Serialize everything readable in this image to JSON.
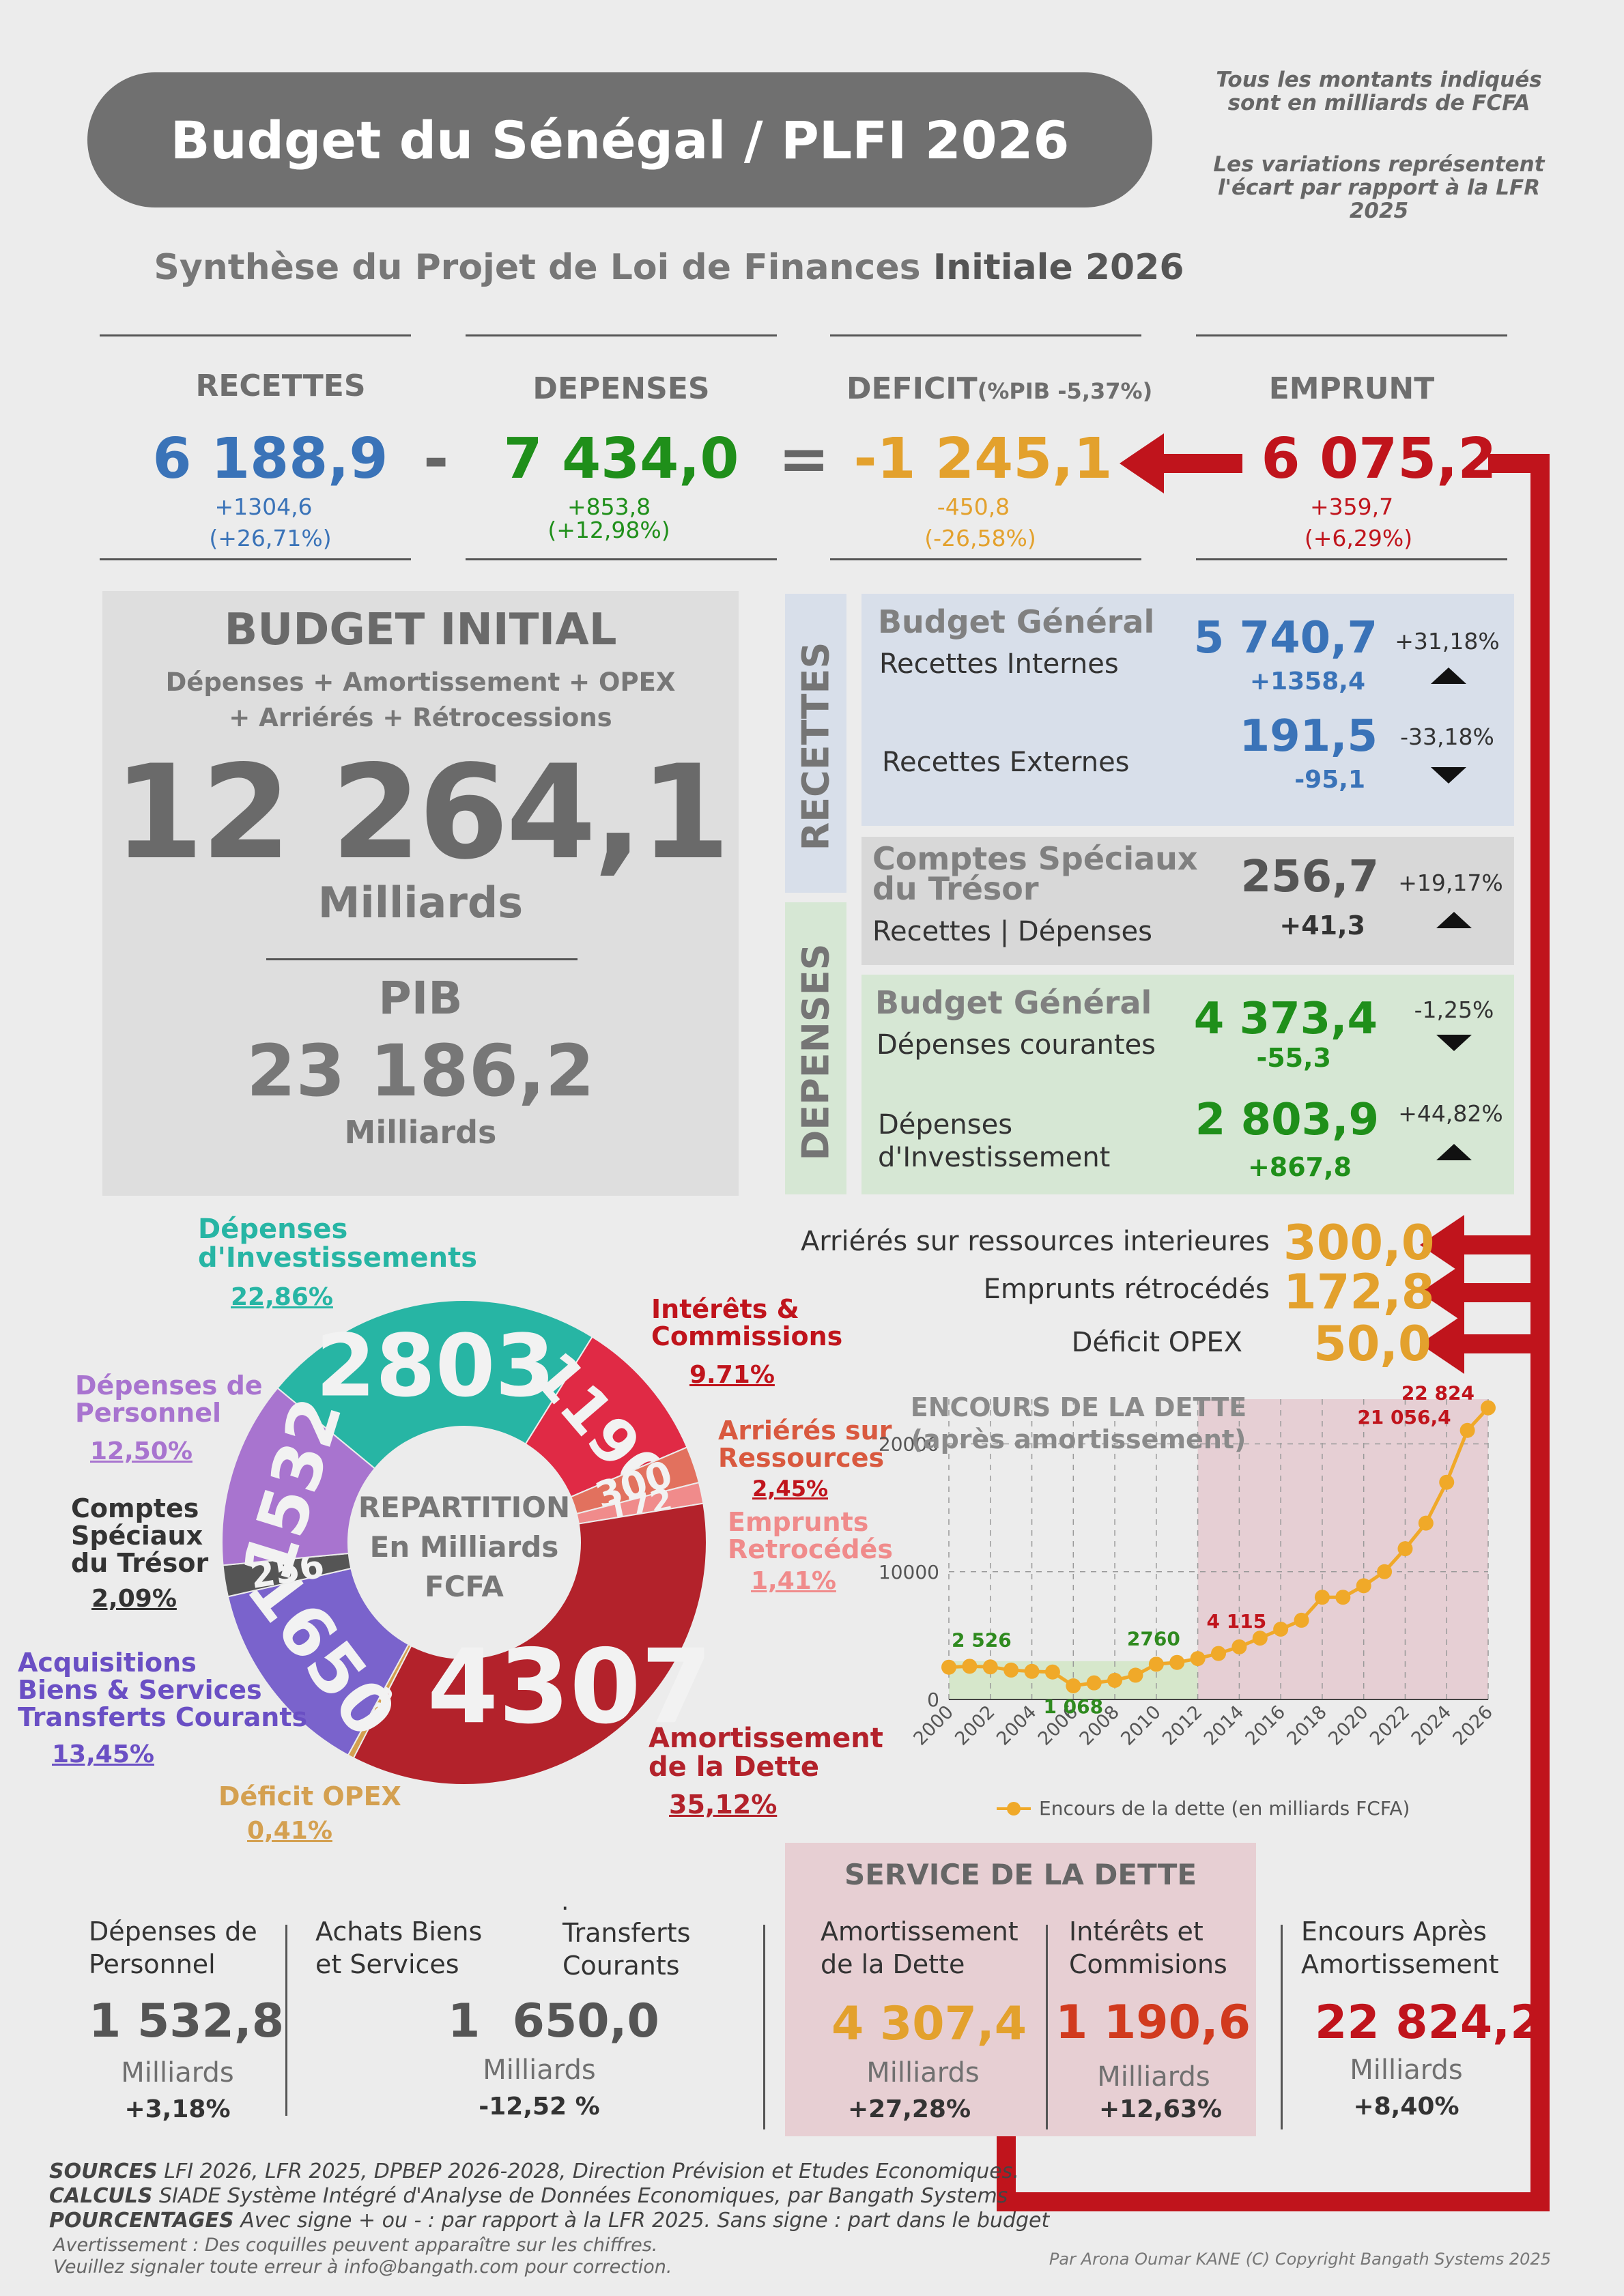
{
  "header": {
    "title": "Budget du Sénégal / PLFI 2026",
    "note1": "Tous les montants indiqués sont en milliards de FCFA",
    "note2": "Les variations représentent l'écart par rapport à la LFR 2025",
    "subtitle_a": "Synthèse du Projet de Loi de Finances",
    "subtitle_b": "Initiale 2026"
  },
  "kpis": {
    "recettes": {
      "label": "RECETTES",
      "value": "6 188,9",
      "delta": "+1304,6",
      "pct": "(+26,71%)"
    },
    "minus": "-",
    "depenses": {
      "label": "DEPENSES",
      "value": "7 434,0",
      "delta": "+853,8",
      "pct": "(+12,98%)"
    },
    "equals": "=",
    "deficit": {
      "label": "DEFICIT",
      "label2": "(%PIB -5,37%)",
      "value": "-1 245,1",
      "delta": "-450,8",
      "pct": "(-26,58%)"
    },
    "emprunt": {
      "label": "EMPRUNT",
      "value": "6 075,2",
      "delta": "+359,7",
      "pct": "(+6,29%)"
    }
  },
  "budget_initial": {
    "title": "BUDGET INITIAL",
    "desc1": "Dépenses + Amortissement + OPEX",
    "desc2": "+ Arriérés + Rétrocessions",
    "value": "12 264,1",
    "unit": "Milliards",
    "pib_label": "PIB",
    "pib_value": "23 186,2",
    "pib_unit": "Milliards"
  },
  "right_panel": {
    "recettes_label": "RECETTES",
    "depenses_label": "DEPENSES",
    "bg_title": "Budget Général",
    "rec_int_label": "Recettes Internes",
    "rec_int_value": "5 740,7",
    "rec_int_delta": "+1358,4",
    "rec_int_pct": "+31,18%",
    "rec_ext_label": "Recettes Externes",
    "rec_ext_value": "191,5",
    "rec_ext_delta": "-95,1",
    "rec_ext_pct": "-33,18%",
    "cst_title1": "Comptes Spéciaux",
    "cst_title2": "du Trésor",
    "cst_sub": "Recettes | Dépenses",
    "cst_value": "256,7",
    "cst_delta": "+41,3",
    "cst_pct": "+19,17%",
    "dbg_title": "Budget Général",
    "dep_cour_label": "Dépenses courantes",
    "dep_cour_value": "4 373,4",
    "dep_cour_delta": "-55,3",
    "dep_cour_pct": "-1,25%",
    "dep_inv_label1": "Dépenses",
    "dep_inv_label2": "d'Investissement",
    "dep_inv_value": "2 803,9",
    "dep_inv_delta": "+867,8",
    "dep_inv_pct": "+44,82%"
  },
  "extras": [
    {
      "label": "Arriérés sur ressources interieures",
      "value": "300,0"
    },
    {
      "label": "Emprunts rétrocédés",
      "value": "172,8"
    },
    {
      "label": "Déficit OPEX",
      "value": "50,0"
    }
  ],
  "donut": {
    "center1": "REPARTITION",
    "center2": "En Milliards",
    "center3": "FCFA",
    "segments": [
      {
        "name": "Dépenses d'Investissement",
        "value": 2803,
        "label": "2803",
        "color": "#27b5a4"
      },
      {
        "name": "Intérêts & Commissions",
        "value": 1190,
        "label": "1190",
        "color": "#e02a45"
      },
      {
        "name": "Arriérés sur Ressources",
        "value": 300,
        "label": "300",
        "color": "#e2715e"
      },
      {
        "name": "Emprunts Retrocédés",
        "value": 172,
        "label": "172",
        "color": "#f08b8b"
      },
      {
        "name": "Amortissement de la Dette",
        "value": 4307,
        "label": "4307",
        "color": "#b3222b"
      },
      {
        "name": "Déficit OPEX",
        "value": 50,
        "label": "50",
        "color": "#d4a050"
      },
      {
        "name": "Acquisitions Biens & Services Transferts Courants",
        "value": 1650,
        "label": "1650",
        "color": "#7a63cc"
      },
      {
        "name": "Comptes Spéciaux du Trésor",
        "value": 256,
        "label": "256",
        "color": "#555555"
      },
      {
        "name": "Dépenses de Personnel",
        "value": 1532,
        "label": "1532",
        "color": "#a874cf"
      }
    ],
    "legend": {
      "inv": {
        "t1": "Dépenses",
        "t2": "d'Investissements",
        "pct": "22,86%"
      },
      "int": {
        "t1": "Intérêts &",
        "t2": "Commissions",
        "pct": "9.71%"
      },
      "arr": {
        "t1": "Arriérés sur",
        "t2": "Ressources",
        "pct": "2,45%"
      },
      "emp": {
        "t1": "Emprunts",
        "t2": "Retrocédés",
        "pct": "1,41%"
      },
      "amo": {
        "t1": "Amortissement",
        "t2": "de la Dette",
        "pct": "35,12%"
      },
      "opex": {
        "t1": "Déficit OPEX",
        "pct": "0,41%"
      },
      "acq": {
        "t1": "Acquisitions",
        "t2": "Biens & Services",
        "t3": "Transferts Courants",
        "pct": "13,45%"
      },
      "cst": {
        "t1": "Comptes",
        "t2": "Spéciaux",
        "t3": "du Trésor",
        "pct": "2,09%"
      },
      "pers": {
        "t1": "Dépenses de",
        "t2": "Personnel",
        "pct": "12,50%"
      }
    }
  },
  "chart_data": {
    "type": "line",
    "title": "ENCOURS DE LA DETTE",
    "subtitle": "(après amortissement)",
    "series": [
      {
        "name": "Encours de la dette (en milliards FCFA)",
        "x": [
          2000,
          2001,
          2002,
          2003,
          2004,
          2005,
          2006,
          2007,
          2008,
          2009,
          2010,
          2011,
          2012,
          2013,
          2014,
          2015,
          2016,
          2017,
          2018,
          2019,
          2020,
          2021,
          2022,
          2023,
          2024,
          2025,
          2026
        ],
        "values": [
          2526,
          2600,
          2550,
          2300,
          2200,
          2150,
          1068,
          1300,
          1500,
          1900,
          2760,
          2900,
          3200,
          3600,
          4115,
          4800,
          5500,
          6200,
          8000,
          8000,
          8900,
          10000,
          11800,
          13800,
          17000,
          21056.4,
          22824
        ]
      }
    ],
    "xticks": [
      "2000",
      "2002",
      "2004",
      "2006",
      "2008",
      "2010",
      "2012",
      "2014",
      "2016",
      "2018",
      "2020",
      "2022",
      "2024",
      "2026"
    ],
    "yticks": [
      "0",
      "10000",
      "20000"
    ],
    "ylim": [
      0,
      23500
    ],
    "annotations": [
      "2 526",
      "1 068",
      "2760",
      "4 115",
      "21 056,4",
      "22 824"
    ],
    "color": "#f0a929"
  },
  "bottom": {
    "pers": {
      "l1": "Dépenses de",
      "l2": "Personnel",
      "value": "1 532,8",
      "unit": "Milliards",
      "pct": "+3,18%"
    },
    "abs": {
      "l1": "Achats Biens",
      "l2": "et Services",
      "dot": ".",
      "l3": "Transferts",
      "l4": "Courants",
      "value": "1  650,0",
      "unit": "Milliards",
      "pct": "-12,52 %"
    },
    "service_title": "SERVICE DE LA DETTE",
    "amo": {
      "l1": "Amortissement",
      "l2": "de la Dette",
      "value": "4 307,4",
      "unit": "Milliards",
      "pct": "+27,28%"
    },
    "int": {
      "l1": "Intérêts et",
      "l2": "Commisions",
      "value": "1 190,6",
      "unit": "Milliards",
      "pct": "+12,63%"
    },
    "enc": {
      "l1": "Encours Après",
      "l2": "Amortissement",
      "value": "22 824,2",
      "unit": "Milliards",
      "pct": "+8,40%"
    }
  },
  "footer": {
    "s1k": "SOURCES",
    "s1": "LFI 2026, LFR 2025, DPBEP 2026-2028, Direction Prévision et Etudes Economiques.",
    "s2k": "CALCULS",
    "s2": "SIADE Système Intégré d'Analyse de Données Economiques, par Bangath Systems",
    "s3k": "POURCENTAGES",
    "s3": "Avec signe + ou - : par rapport à la LFR 2025. Sans signe : part dans le budget",
    "w1": "Avertissement : Des coquilles peuvent apparaître sur les chiffres.",
    "w2": "Veuillez signaler toute erreur à info@bangath.com pour correction.",
    "credit": "Par Arona Oumar KANE  (C) Copyright Bangath Systems 2025"
  }
}
